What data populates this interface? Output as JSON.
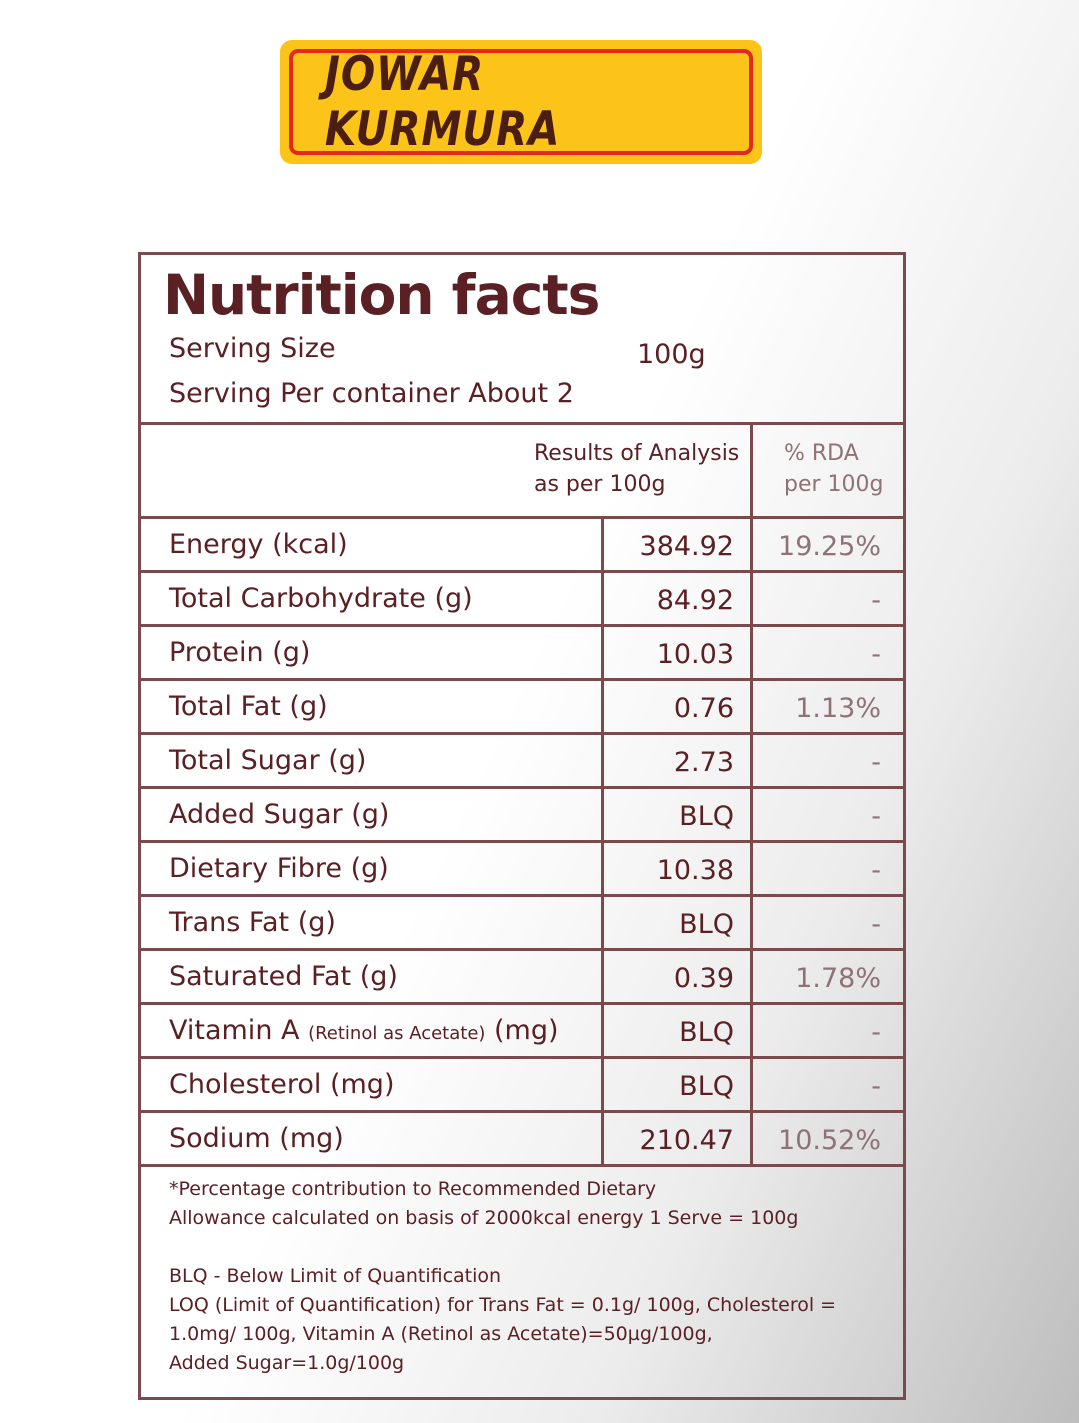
{
  "product_name": "JOWAR KURMURA",
  "label": {
    "title": "Nutrition facts",
    "serving_size_label": "Serving Size",
    "serving_size_value": "100g",
    "servings_per_container": "Serving Per container About 2",
    "column_results_line1": "Results of Analysis",
    "column_results_line2": "as per 100g",
    "column_rda_line1": "% RDA",
    "column_rda_line2": "per 100g",
    "rows": [
      {
        "name": "Energy (kcal)",
        "value": "384.92",
        "rda": "19.25%"
      },
      {
        "name": "Total Carbohydrate (g)",
        "value": "84.92",
        "rda": "-"
      },
      {
        "name": "Protein (g)",
        "value": "10.03",
        "rda": "-"
      },
      {
        "name": "Total Fat (g)",
        "value": "0.76",
        "rda": "1.13%"
      },
      {
        "name": "Total Sugar (g)",
        "value": "2.73",
        "rda": "-"
      },
      {
        "name": "Added Sugar (g)",
        "value": "BLQ",
        "rda": "-"
      },
      {
        "name": "Dietary Fibre (g)",
        "value": "10.38",
        "rda": "-"
      },
      {
        "name": "Trans Fat (g)",
        "value": "BLQ",
        "rda": "-"
      },
      {
        "name": "Saturated Fat (g)",
        "value": "0.39",
        "rda": "1.78%"
      },
      {
        "name_main": "Vitamin A",
        "name_small": "(Retinol as Acetate)",
        "name_unit": "(mg)",
        "value": "BLQ",
        "rda": "-"
      },
      {
        "name": "Cholesterol (mg)",
        "value": "BLQ",
        "rda": "-"
      },
      {
        "name": "Sodium (mg)",
        "value": "210.47",
        "rda": "10.52%"
      }
    ],
    "footnote_lines": [
      "*Percentage contribution to Recommended Dietary",
      "Allowance calculated on basis of 2000kcal energy 1 Serve = 100g",
      "",
      "BLQ - Below Limit of Quantification",
      "LOQ (Limit of Quantification) for Trans Fat = 0.1g/ 100g,  Cholesterol =",
      "1.0mg/ 100g, Vitamin A (Retinol as Acetate)=50µg/100g,",
      "Added Sugar=1.0g/100g"
    ]
  },
  "colors": {
    "badge_fill": "#fcc419",
    "badge_border": "#e3291f",
    "text": "#5a2024",
    "rule": "#7a4a4e"
  }
}
